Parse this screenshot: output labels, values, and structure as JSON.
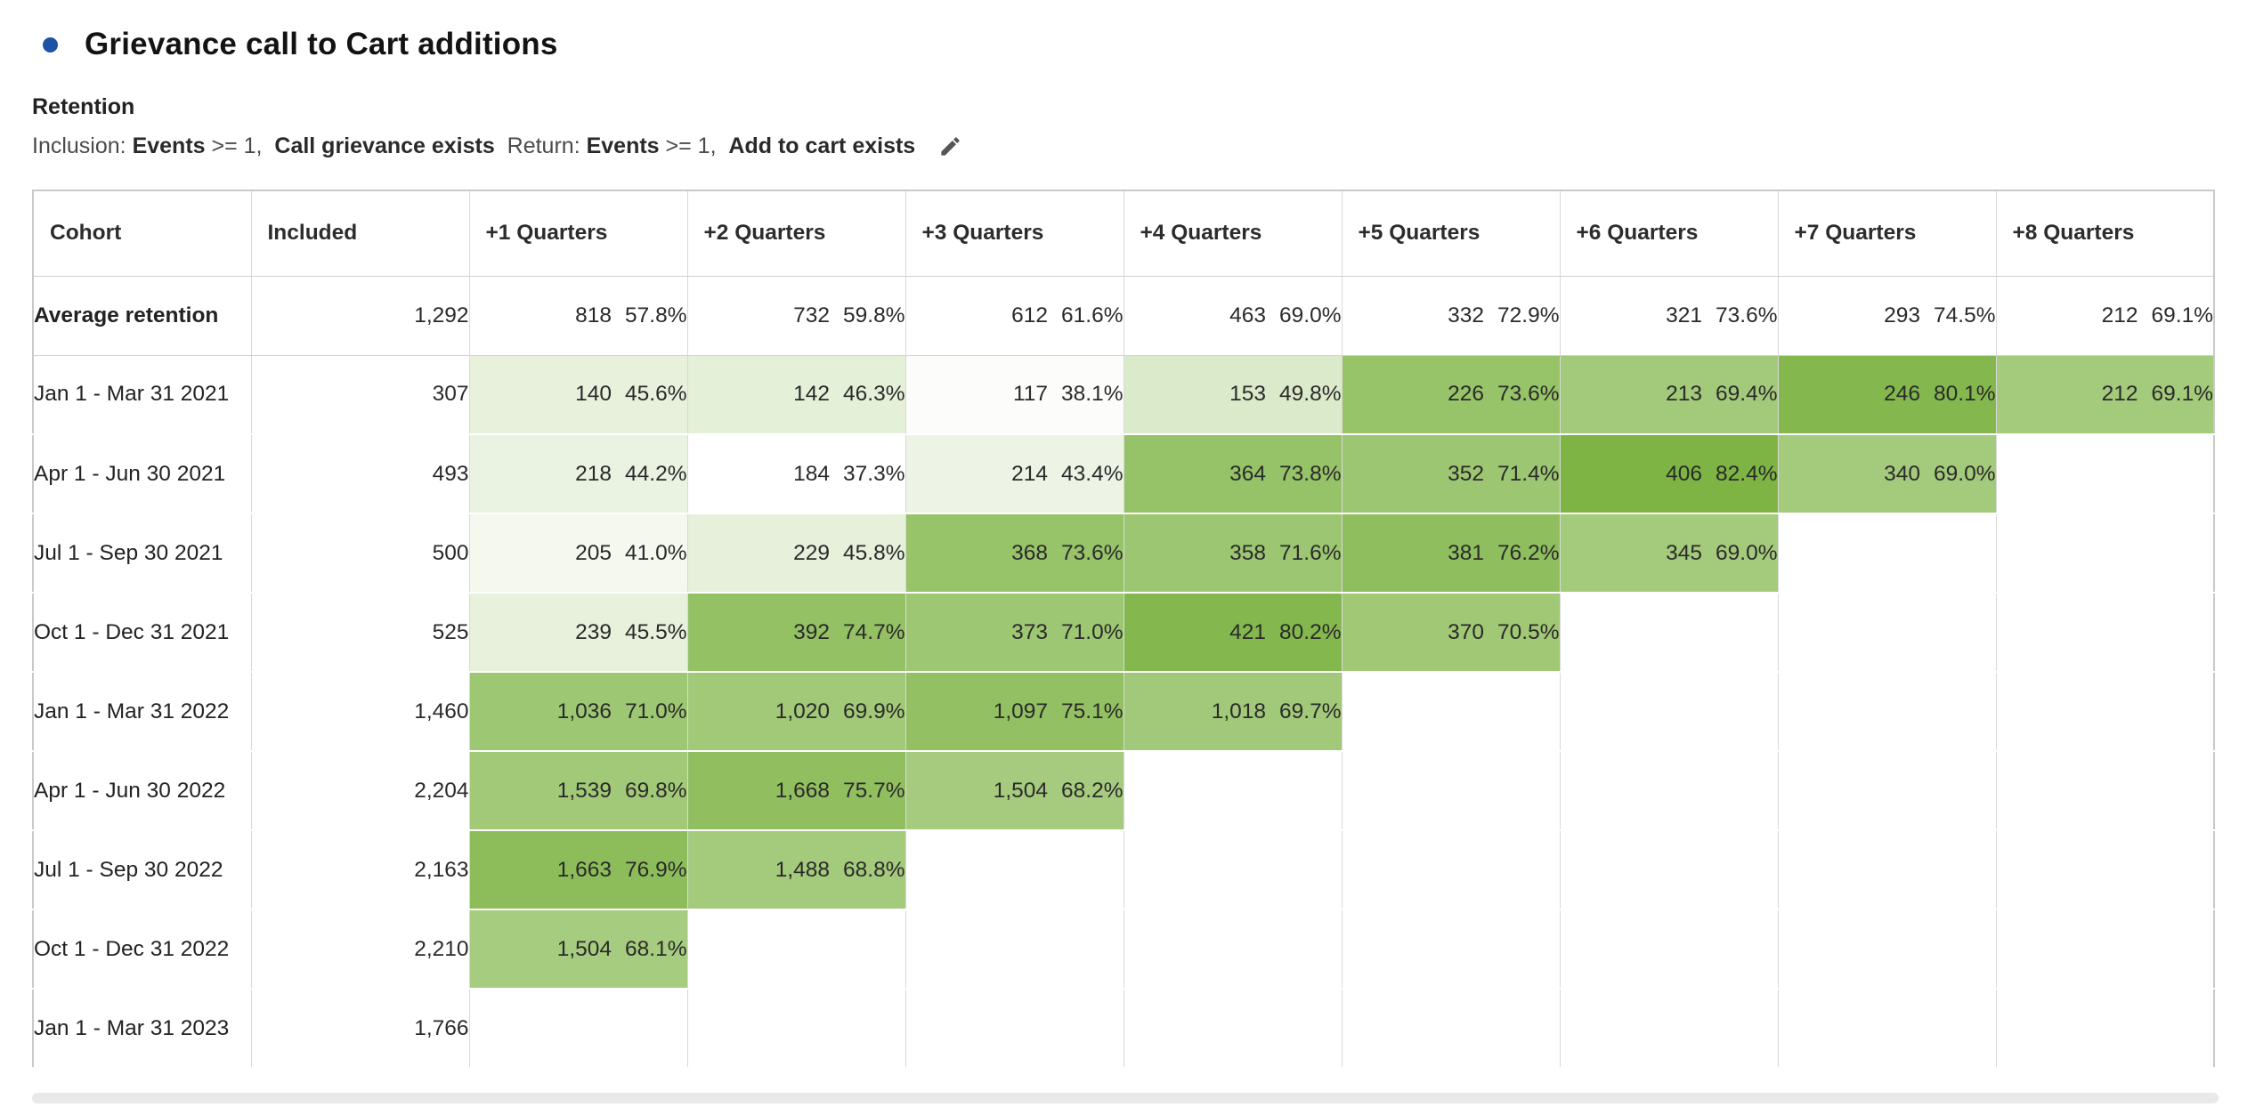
{
  "header": {
    "bullet_color": "#1c54a5",
    "title": "Grievance call to Cart additions",
    "subtitle": "Retention",
    "filter_segments": [
      {
        "text": "Inclusion: ",
        "bold": false
      },
      {
        "text": "Events",
        "bold": true
      },
      {
        "text": " >= 1,  ",
        "bold": false
      },
      {
        "text": "Call grievance exists",
        "bold": true
      },
      {
        "text": "  Return: ",
        "bold": false
      },
      {
        "text": "Events",
        "bold": true
      },
      {
        "text": " >= 1,  ",
        "bold": false
      },
      {
        "text": "Add to cart exists",
        "bold": true
      }
    ],
    "edit_icon": "pencil"
  },
  "table": {
    "heat": {
      "base_color": "#7CB342",
      "min_pct": 37,
      "max_pct": 83
    },
    "columns": [
      "Cohort",
      "Included",
      "+1 Quarters",
      "+2 Quarters",
      "+3 Quarters",
      "+4 Quarters",
      "+5 Quarters",
      "+6 Quarters",
      "+7 Quarters",
      "+8 Quarters"
    ],
    "average_row": {
      "label": "Average retention",
      "included": "1,292",
      "cells": [
        [
          "818",
          "57.8%"
        ],
        [
          "732",
          "59.8%"
        ],
        [
          "612",
          "61.6%"
        ],
        [
          "463",
          "69.0%"
        ],
        [
          "332",
          "72.9%"
        ],
        [
          "321",
          "73.6%"
        ],
        [
          "293",
          "74.5%"
        ],
        [
          "212",
          "69.1%"
        ]
      ]
    },
    "rows": [
      {
        "label": "Jan 1 - Mar 31 2021",
        "included": "307",
        "cells": [
          [
            "140",
            "45.6%"
          ],
          [
            "142",
            "46.3%"
          ],
          [
            "117",
            "38.1%"
          ],
          [
            "153",
            "49.8%"
          ],
          [
            "226",
            "73.6%"
          ],
          [
            "213",
            "69.4%"
          ],
          [
            "246",
            "80.1%"
          ],
          [
            "212",
            "69.1%"
          ]
        ]
      },
      {
        "label": "Apr 1 - Jun 30 2021",
        "included": "493",
        "cells": [
          [
            "218",
            "44.2%"
          ],
          [
            "184",
            "37.3%"
          ],
          [
            "214",
            "43.4%"
          ],
          [
            "364",
            "73.8%"
          ],
          [
            "352",
            "71.4%"
          ],
          [
            "406",
            "82.4%"
          ],
          [
            "340",
            "69.0%"
          ],
          null
        ]
      },
      {
        "label": "Jul 1 - Sep 30 2021",
        "included": "500",
        "cells": [
          [
            "205",
            "41.0%"
          ],
          [
            "229",
            "45.8%"
          ],
          [
            "368",
            "73.6%"
          ],
          [
            "358",
            "71.6%"
          ],
          [
            "381",
            "76.2%"
          ],
          [
            "345",
            "69.0%"
          ],
          null,
          null
        ]
      },
      {
        "label": "Oct 1 - Dec 31 2021",
        "included": "525",
        "cells": [
          [
            "239",
            "45.5%"
          ],
          [
            "392",
            "74.7%"
          ],
          [
            "373",
            "71.0%"
          ],
          [
            "421",
            "80.2%"
          ],
          [
            "370",
            "70.5%"
          ],
          null,
          null,
          null
        ]
      },
      {
        "label": "Jan 1 - Mar 31 2022",
        "included": "1,460",
        "cells": [
          [
            "1,036",
            "71.0%"
          ],
          [
            "1,020",
            "69.9%"
          ],
          [
            "1,097",
            "75.1%"
          ],
          [
            "1,018",
            "69.7%"
          ],
          null,
          null,
          null,
          null
        ]
      },
      {
        "label": "Apr 1 - Jun 30 2022",
        "included": "2,204",
        "cells": [
          [
            "1,539",
            "69.8%"
          ],
          [
            "1,668",
            "75.7%"
          ],
          [
            "1,504",
            "68.2%"
          ],
          null,
          null,
          null,
          null,
          null
        ]
      },
      {
        "label": "Jul 1 - Sep 30 2022",
        "included": "2,163",
        "cells": [
          [
            "1,663",
            "76.9%"
          ],
          [
            "1,488",
            "68.8%"
          ],
          null,
          null,
          null,
          null,
          null,
          null
        ]
      },
      {
        "label": "Oct 1 - Dec 31 2022",
        "included": "2,210",
        "cells": [
          [
            "1,504",
            "68.1%"
          ],
          null,
          null,
          null,
          null,
          null,
          null,
          null
        ]
      },
      {
        "label": "Jan 1 - Mar 31 2023",
        "included": "1,766",
        "cells": [
          null,
          null,
          null,
          null,
          null,
          null,
          null,
          null
        ]
      }
    ]
  }
}
